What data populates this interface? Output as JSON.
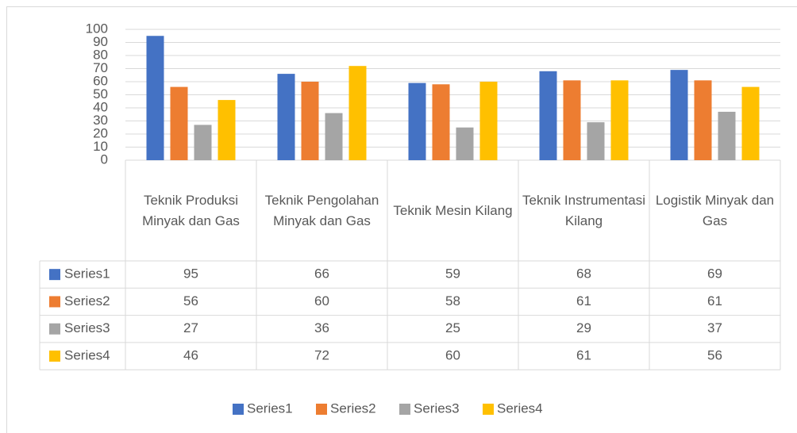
{
  "chart_data": {
    "type": "bar",
    "categories": [
      "Teknik Produksi Minyak dan Gas",
      "Teknik Pengolahan Minyak dan Gas",
      "Teknik Mesin Kilang",
      "Teknik Instrumentasi Kilang",
      "Logistik Minyak dan Gas"
    ],
    "series": [
      {
        "name": "Series1",
        "color": "#4472c4",
        "values": [
          95,
          66,
          59,
          68,
          69
        ]
      },
      {
        "name": "Series2",
        "color": "#ed7d31",
        "values": [
          56,
          60,
          58,
          61,
          61
        ]
      },
      {
        "name": "Series3",
        "color": "#a5a5a5",
        "values": [
          27,
          36,
          25,
          29,
          37
        ]
      },
      {
        "name": "Series4",
        "color": "#ffc000",
        "values": [
          46,
          72,
          60,
          61,
          56
        ]
      }
    ],
    "ylim": [
      0,
      100
    ],
    "yticks": [
      0,
      10,
      20,
      30,
      40,
      50,
      60,
      70,
      80,
      90,
      100
    ],
    "grid": true,
    "legend": "bottom",
    "data_table": true
  }
}
